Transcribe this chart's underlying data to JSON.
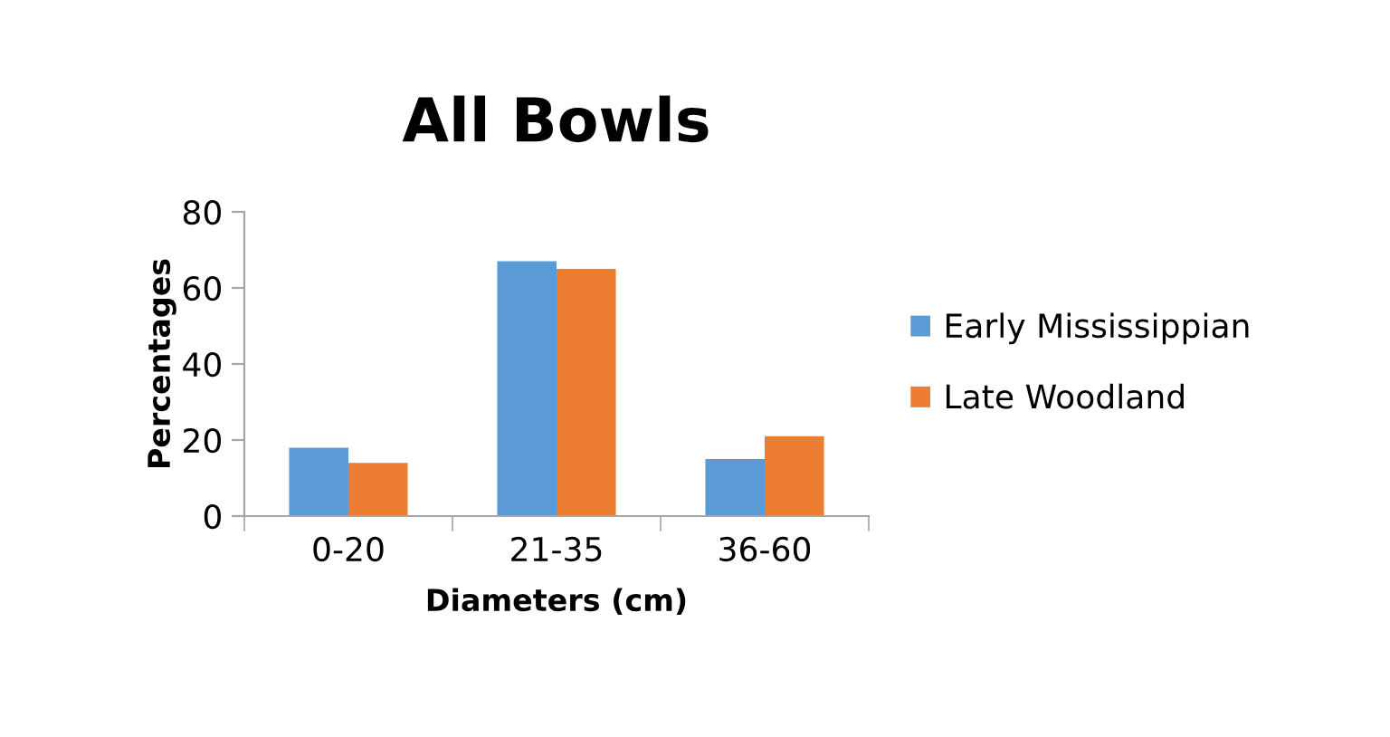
{
  "chart_data": {
    "type": "bar",
    "title": "All Bowls",
    "xlabel": "Diameters (cm)",
    "ylabel": "Percentages",
    "categories": [
      "0-20",
      "21-35",
      "36-60"
    ],
    "series": [
      {
        "name": "Early Mississippian",
        "color": "#5b9bd5",
        "values": [
          18,
          67,
          15
        ]
      },
      {
        "name": "Late Woodland",
        "color": "#ed7d31",
        "values": [
          14,
          65,
          21
        ]
      }
    ],
    "ylim": [
      0,
      80
    ],
    "yticks": [
      0,
      20,
      40,
      60,
      80
    ],
    "grid": false,
    "legend": "right"
  }
}
